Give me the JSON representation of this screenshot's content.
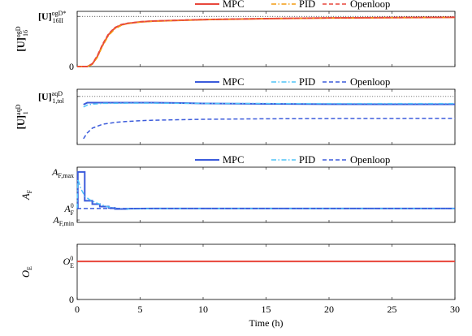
{
  "chart_data": [
    {
      "type": "line",
      "panel": 1,
      "legend": [
        "MPC",
        "PID",
        "Openloop"
      ],
      "legend_placement": "top-center",
      "ylabel": {
        "base": "[U]",
        "sup": "ogD",
        "sub": "16"
      },
      "yticks": [
        {
          "value": 0,
          "label": "0"
        },
        {
          "value": 1,
          "label": ""
        }
      ],
      "ytick_text": {
        "base": "[U]",
        "sup": "ogD*",
        "sub": "16II"
      },
      "reference_line": 1,
      "ylim": [
        0,
        1.1
      ],
      "series": [
        {
          "name": "MPC",
          "color": "#e8473c",
          "style": "solid",
          "x": [
            0,
            0.8,
            1.2,
            1.6,
            2,
            2.5,
            3,
            3.5,
            4,
            5,
            6,
            8,
            10,
            15,
            20,
            25,
            30
          ],
          "y": [
            0,
            0,
            0.05,
            0.2,
            0.42,
            0.64,
            0.77,
            0.83,
            0.86,
            0.89,
            0.905,
            0.92,
            0.935,
            0.955,
            0.968,
            0.975,
            0.98
          ]
        },
        {
          "name": "PID",
          "color": "#f39c12",
          "style": "dashdot",
          "x": [
            0,
            0.8,
            1.2,
            1.6,
            2,
            2.5,
            3,
            3.5,
            4,
            5,
            6,
            8,
            10,
            15,
            20,
            25,
            30
          ],
          "y": [
            0,
            0,
            0.04,
            0.18,
            0.4,
            0.62,
            0.75,
            0.82,
            0.855,
            0.885,
            0.9,
            0.918,
            0.932,
            0.953,
            0.966,
            0.974,
            0.979
          ]
        },
        {
          "name": "Openloop",
          "color": "#e8473c",
          "style": "dashed",
          "x": [
            0,
            0.8,
            1.2,
            1.6,
            2,
            2.5,
            3,
            3.5,
            4,
            5,
            6,
            8,
            10,
            15,
            20,
            25,
            30
          ],
          "y": [
            0,
            0,
            0.06,
            0.22,
            0.44,
            0.66,
            0.78,
            0.84,
            0.865,
            0.895,
            0.91,
            0.925,
            0.94,
            0.958,
            0.97,
            0.977,
            0.982
          ]
        }
      ]
    },
    {
      "type": "line",
      "panel": 2,
      "legend": [
        "MPC",
        "PID",
        "Openloop"
      ],
      "legend_placement": "top-center",
      "ylabel": {
        "base": "[U]",
        "sup": "aqD",
        "sub": "1"
      },
      "yticks": [
        {
          "value": 1,
          "label": ""
        }
      ],
      "ytick_text": {
        "base": "[U]",
        "sup": "aqD",
        "sub": "1,tol"
      },
      "reference_line": 1,
      "ylim": [
        0,
        1.15
      ],
      "series": [
        {
          "name": "MPC",
          "color": "#3b5bdb",
          "style": "solid",
          "x": [
            0.5,
            0.8,
            1.2,
            2,
            4,
            6,
            8,
            10,
            15,
            20,
            25,
            30
          ],
          "y": [
            0.83,
            0.87,
            0.87,
            0.872,
            0.872,
            0.87,
            0.865,
            0.855,
            0.845,
            0.84,
            0.838,
            0.837
          ]
        },
        {
          "name": "PID",
          "color": "#4fc3f7",
          "style": "dashdot",
          "x": [
            0.5,
            0.8,
            1.2,
            2,
            4,
            6,
            8,
            10,
            15,
            20,
            25,
            30
          ],
          "y": [
            0.78,
            0.82,
            0.84,
            0.855,
            0.86,
            0.86,
            0.857,
            0.855,
            0.853,
            0.852,
            0.852,
            0.852
          ]
        },
        {
          "name": "Openloop",
          "color": "#3b5bdb",
          "style": "dashed",
          "x": [
            0.5,
            0.8,
            1.2,
            2,
            3,
            4,
            5,
            6,
            8,
            10,
            15,
            20,
            25,
            30
          ],
          "y": [
            0.12,
            0.24,
            0.34,
            0.42,
            0.46,
            0.48,
            0.495,
            0.505,
            0.515,
            0.525,
            0.535,
            0.54,
            0.542,
            0.543
          ]
        }
      ]
    },
    {
      "type": "line",
      "panel": 3,
      "legend": [
        "MPC",
        "PID",
        "Openloop"
      ],
      "legend_placement": "top-center",
      "ylabel": {
        "base": "A",
        "sub": "F"
      },
      "yticks": [
        {
          "value": 0,
          "label_base": "A",
          "label_sub": "F,min"
        },
        {
          "value": 0.24,
          "label_base": "A",
          "label_sub": "F",
          "label_sup": "0"
        },
        {
          "value": 1,
          "label_base": "A",
          "label_sub": "F,max"
        }
      ],
      "ylim": [
        -0.05,
        1.1
      ],
      "series": [
        {
          "name": "MPC",
          "color": "#3b5bdb",
          "style": "solid",
          "step": true,
          "x": [
            0,
            0.05,
            0.05,
            0.6,
            0.6,
            1.2,
            1.2,
            1.8,
            1.8,
            2.5,
            2.5,
            3,
            3,
            4,
            4,
            6,
            30
          ],
          "y": [
            0.24,
            0.24,
            1.0,
            1.0,
            0.4,
            0.4,
            0.33,
            0.33,
            0.28,
            0.28,
            0.25,
            0.25,
            0.23,
            0.23,
            0.235,
            0.24,
            0.24
          ]
        },
        {
          "name": "PID",
          "color": "#4fc3f7",
          "style": "dashdot",
          "x": [
            0,
            0.05,
            0.3,
            0.6,
            1,
            1.5,
            2,
            2.5,
            3,
            4,
            5,
            6,
            8,
            10,
            15,
            30
          ],
          "y": [
            0.24,
            0.85,
            0.65,
            0.5,
            0.42,
            0.36,
            0.31,
            0.27,
            0.245,
            0.23,
            0.232,
            0.236,
            0.239,
            0.24,
            0.24,
            0.24
          ]
        },
        {
          "name": "Openloop",
          "color": "#3b5bdb",
          "style": "dashed",
          "x": [
            0,
            30
          ],
          "y": [
            0.24,
            0.24
          ]
        }
      ]
    },
    {
      "type": "line",
      "panel": 4,
      "ylabel": {
        "base": "O",
        "sub": "E"
      },
      "yticks": [
        {
          "value": 0,
          "label": "0"
        },
        {
          "value": 1,
          "label_base": "O",
          "label_sub": "E",
          "label_sup": "0"
        }
      ],
      "ylim": [
        0,
        1.45
      ],
      "series": [
        {
          "color": "#e8473c",
          "style": "solid",
          "x": [
            0,
            30
          ],
          "y": [
            1,
            1
          ]
        }
      ]
    }
  ],
  "x_axis": {
    "label": "Time (h)",
    "ticks": [
      0,
      5,
      10,
      15,
      20,
      25,
      30
    ],
    "xlim": [
      0,
      30
    ]
  }
}
